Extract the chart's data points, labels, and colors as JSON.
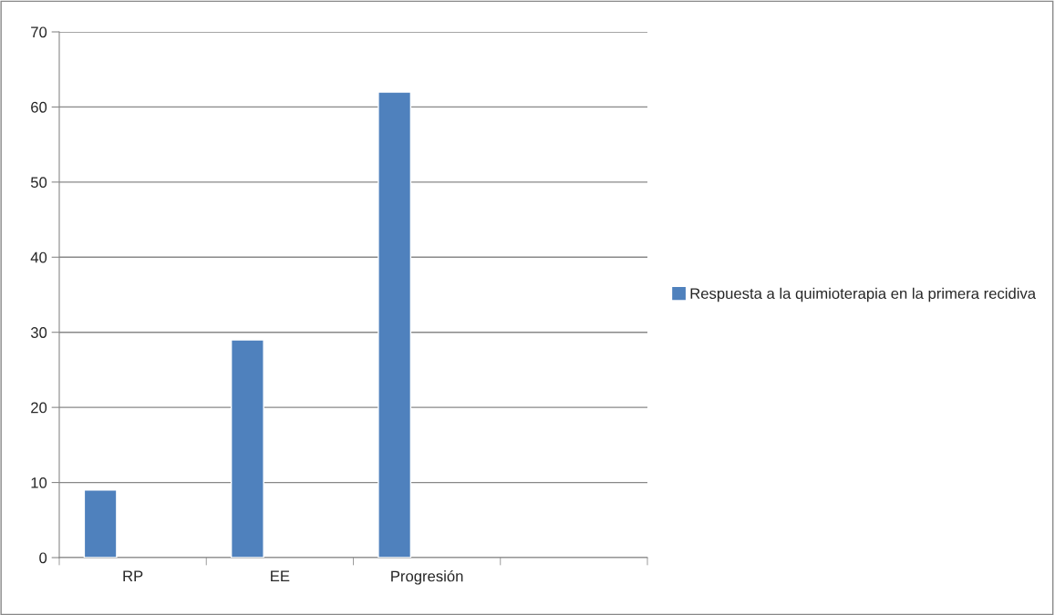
{
  "chart_data": {
    "type": "bar",
    "categories": [
      "RP",
      "EE",
      "Progresión",
      null
    ],
    "series": [
      {
        "name": "Respuesta a la quimioterapia en la primera recidiva",
        "color": "#4f81bd",
        "values": [
          9,
          29,
          62,
          null
        ]
      }
    ],
    "ylim": [
      0,
      70
    ],
    "yticks": [
      0,
      10,
      20,
      30,
      40,
      50,
      60,
      70
    ],
    "grid": "y",
    "legend": "right"
  }
}
